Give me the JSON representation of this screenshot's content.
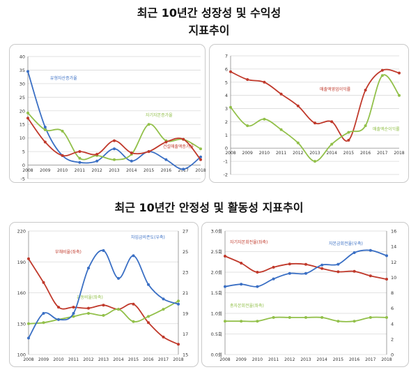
{
  "headings": {
    "title1_line1": "최근 10년간 성장성 및 수익성",
    "title1_line2": "지표추이",
    "title2": "최근 10년간 안정성 및 활동성 지표추이"
  },
  "chart_data": [
    {
      "type": "line",
      "x": [
        "2008",
        "2009",
        "2010",
        "2011",
        "2012",
        "2013",
        "2014",
        "2015",
        "2016",
        "2017",
        "2018"
      ],
      "ylim": [
        -5,
        40
      ],
      "yticks": [
        -5,
        0,
        5,
        10,
        15,
        20,
        25,
        30,
        35,
        40
      ],
      "grid": true,
      "series": [
        {
          "name": "유형자산증가율",
          "color": "#3a6fc4",
          "values": [
            34.5,
            14.0,
            3.5,
            1.0,
            1.5,
            6.0,
            1.5,
            5.0,
            2.0,
            -1.5,
            3.0
          ]
        },
        {
          "name": "자기자본증가율",
          "color": "#92c04a",
          "values": [
            19.2,
            13.0,
            12.5,
            2.5,
            3.5,
            2.0,
            4.0,
            15.0,
            9.0,
            9.5,
            6.0
          ]
        },
        {
          "name": "건설매출액증가율",
          "color": "#c0392b",
          "values": [
            17.3,
            8.5,
            3.5,
            5.0,
            4.0,
            9.0,
            4.5,
            5.0,
            8.5,
            9.5,
            2.0
          ]
        }
      ]
    },
    {
      "type": "line",
      "x": [
        "2008",
        "2009",
        "2010",
        "2011",
        "2012",
        "2013",
        "2014",
        "2015",
        "2016",
        "2017",
        "2018"
      ],
      "ylim": [
        -2,
        7
      ],
      "yticks": [
        -2,
        -1,
        0,
        1,
        2,
        3,
        4,
        5,
        6,
        7
      ],
      "grid": true,
      "series": [
        {
          "name": "매출액영업이익률",
          "color": "#c0392b",
          "values": [
            5.8,
            5.2,
            5.0,
            4.1,
            3.2,
            1.9,
            2.0,
            0.6,
            4.4,
            5.9,
            5.7
          ]
        },
        {
          "name": "매출액순이익률",
          "color": "#92c04a",
          "values": [
            3.1,
            1.7,
            2.2,
            1.4,
            0.4,
            -1.0,
            0.3,
            1.2,
            1.7,
            5.5,
            4.0
          ]
        }
      ]
    },
    {
      "type": "line",
      "x": [
        "2008",
        "2009",
        "2010",
        "2011",
        "2012",
        "2013",
        "2014",
        "2015",
        "2016",
        "2017",
        "2018"
      ],
      "ylim": [
        100,
        220
      ],
      "yticks": [
        100,
        130,
        160,
        190,
        220
      ],
      "ylim_right": [
        15,
        27
      ],
      "yticks_right": [
        15,
        17,
        19,
        21,
        23,
        25,
        27
      ],
      "grid": true,
      "series": [
        {
          "name": "부채비율(좌축)",
          "axis": "left",
          "color": "#c0392b",
          "values": [
            193,
            170,
            146,
            146,
            145,
            148,
            144,
            149,
            131,
            117,
            110
          ]
        },
        {
          "name": "유동비율(좌축)",
          "axis": "left",
          "color": "#92c04a",
          "values": [
            130,
            131,
            134,
            137,
            140,
            138,
            144,
            132,
            137,
            144,
            152
          ]
        },
        {
          "name": "차입금의존도(우축)",
          "axis": "right",
          "color": "#3a6fc4",
          "values": [
            16.6,
            19.0,
            18.4,
            19.0,
            23.4,
            25.1,
            22.4,
            24.6,
            21.8,
            20.4,
            19.9
          ]
        }
      ]
    },
    {
      "type": "line",
      "x": [
        "2008",
        "2009",
        "2010",
        "2011",
        "2012",
        "2013",
        "2014",
        "2015",
        "2016",
        "2017",
        "2018"
      ],
      "ylim": [
        0,
        3.0
      ],
      "yticks": [
        0,
        0.5,
        1.0,
        1.5,
        2.0,
        2.5,
        3.0
      ],
      "ytick_labels": [
        "0.0회",
        "0.5회",
        "1.0회",
        "1.5회",
        "2.0회",
        "2.5회",
        "3.0회"
      ],
      "ylim_right": [
        0,
        16
      ],
      "yticks_right": [
        0,
        2,
        4,
        6,
        8,
        10,
        12,
        14,
        16
      ],
      "grid": true,
      "series": [
        {
          "name": "자기자본회전율(좌축)",
          "axis": "left",
          "color": "#c0392b",
          "values": [
            2.39,
            2.22,
            2.0,
            2.12,
            2.2,
            2.19,
            2.09,
            2.01,
            2.02,
            1.91,
            1.83
          ]
        },
        {
          "name": "자본금회전율(우축)",
          "axis": "right",
          "color": "#3a6fc4",
          "values": [
            8.8,
            9.1,
            8.8,
            9.8,
            10.5,
            10.5,
            11.6,
            11.7,
            13.2,
            13.5,
            12.8
          ]
        },
        {
          "name": "총자본회전율(좌축)",
          "axis": "left",
          "color": "#92c04a",
          "values": [
            0.81,
            0.81,
            0.81,
            0.9,
            0.9,
            0.9,
            0.9,
            0.81,
            0.81,
            0.9,
            0.9
          ]
        }
      ]
    }
  ]
}
